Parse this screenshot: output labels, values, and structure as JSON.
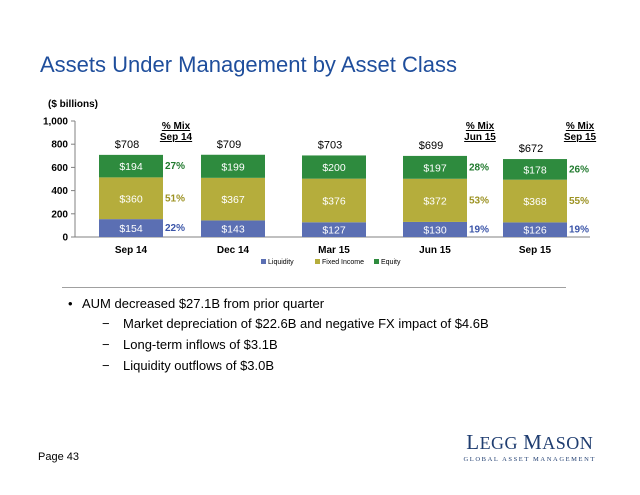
{
  "header": {
    "title": "Assets Under Management by Asset Class"
  },
  "chart_data": {
    "type": "bar",
    "stacked": true,
    "units_label": "($ billions)",
    "categories": [
      "Sep 14",
      "Dec 14",
      "Mar 15",
      "Jun 15",
      "Sep 15"
    ],
    "series": [
      {
        "name": "Liquidity",
        "values": [
          154,
          143,
          127,
          130,
          126
        ],
        "labels": [
          "$154",
          "$143",
          "$127",
          "$130",
          "$126"
        ],
        "color": "#5b6fb3"
      },
      {
        "name": "Fixed Income",
        "values": [
          360,
          367,
          376,
          372,
          368
        ],
        "labels": [
          "$360",
          "$367",
          "$376",
          "$372",
          "$368"
        ],
        "color": "#b5ad3c"
      },
      {
        "name": "Equity",
        "values": [
          194,
          199,
          200,
          197,
          178
        ],
        "labels": [
          "$194",
          "$199",
          "$200",
          "$197",
          "$178"
        ],
        "color": "#2e8b3e"
      }
    ],
    "totals": [
      "$708",
      "$709",
      "$703",
      "$699",
      "$672"
    ],
    "ylim": [
      0,
      1000
    ],
    "yticks": [
      0,
      200,
      400,
      600,
      800,
      1000
    ],
    "ytick_labels": [
      "0",
      "200",
      "400",
      "600",
      "800",
      "1,000"
    ],
    "grid": false,
    "legend_position": "bottom",
    "mix_annotations": [
      {
        "category_index": 0,
        "header": [
          "% Mix",
          "Sep 14"
        ],
        "percents": [
          "22%",
          "51%",
          "27%"
        ]
      },
      {
        "category_index": 3,
        "header": [
          "% Mix",
          "Jun 15"
        ],
        "percents": [
          "19%",
          "53%",
          "28%"
        ]
      },
      {
        "category_index": 4,
        "header": [
          "% Mix",
          "Sep 15"
        ],
        "percents": [
          "19%",
          "55%",
          "26%"
        ]
      }
    ],
    "percent_colors": {
      "liquidity": "#3a54a8",
      "fixed_income": "#9c9222",
      "equity": "#217a2e"
    }
  },
  "bullets": [
    {
      "level": 1,
      "text": "AUM decreased $27.1B from prior quarter"
    },
    {
      "level": 2,
      "text": "Market depreciation of $22.6B and negative FX impact of $4.6B"
    },
    {
      "level": 2,
      "text": "Long-term inflows of $3.1B"
    },
    {
      "level": 2,
      "text": "Liquidity outflows of $3.0B"
    }
  ],
  "bullet_dash": "−",
  "footer": {
    "page": "Page 43",
    "logo_first": "L",
    "logo_first_rest": "EGG",
    "logo_second": "M",
    "logo_second_rest": "ASON",
    "logo_sub": "GLOBAL ASSET MANAGEMENT"
  }
}
